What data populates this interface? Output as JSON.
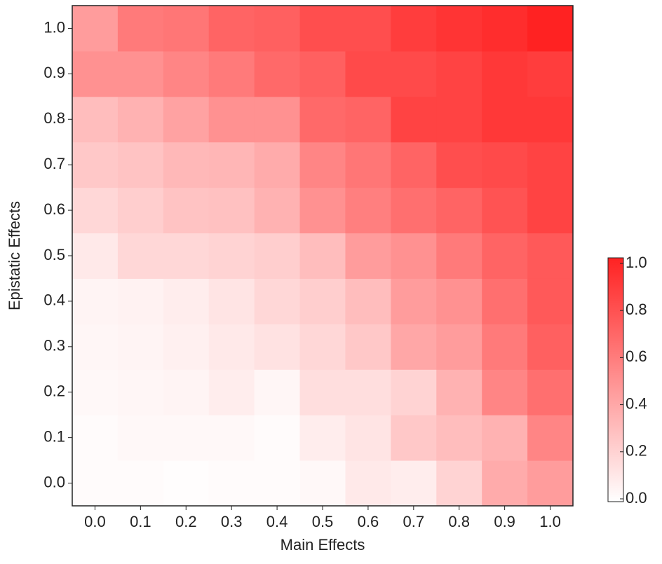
{
  "chart_data": {
    "type": "heatmap",
    "x_label": "Main Effects",
    "y_label": "Epistatic Effects",
    "x_categories": [
      "0.0",
      "0.1",
      "0.2",
      "0.3",
      "0.4",
      "0.5",
      "0.6",
      "0.7",
      "0.8",
      "0.9",
      "1.0"
    ],
    "y_categories": [
      "0.0",
      "0.1",
      "0.2",
      "0.3",
      "0.4",
      "0.5",
      "0.6",
      "0.7",
      "0.8",
      "0.9",
      "1.0"
    ],
    "values": [
      [
        0.02,
        0.02,
        0.01,
        0.02,
        0.02,
        0.03,
        0.1,
        0.08,
        0.2,
        0.38,
        0.45
      ],
      [
        0.02,
        0.03,
        0.03,
        0.03,
        0.02,
        0.08,
        0.12,
        0.25,
        0.3,
        0.35,
        0.55
      ],
      [
        0.03,
        0.04,
        0.05,
        0.08,
        0.04,
        0.15,
        0.15,
        0.2,
        0.35,
        0.55,
        0.65
      ],
      [
        0.04,
        0.05,
        0.07,
        0.1,
        0.13,
        0.18,
        0.25,
        0.4,
        0.45,
        0.6,
        0.72
      ],
      [
        0.05,
        0.06,
        0.08,
        0.12,
        0.18,
        0.22,
        0.3,
        0.45,
        0.5,
        0.65,
        0.75
      ],
      [
        0.1,
        0.18,
        0.18,
        0.2,
        0.22,
        0.3,
        0.45,
        0.5,
        0.6,
        0.7,
        0.75
      ],
      [
        0.18,
        0.22,
        0.27,
        0.28,
        0.35,
        0.5,
        0.58,
        0.65,
        0.7,
        0.78,
        0.85
      ],
      [
        0.25,
        0.27,
        0.32,
        0.33,
        0.38,
        0.55,
        0.62,
        0.7,
        0.8,
        0.82,
        0.85
      ],
      [
        0.3,
        0.35,
        0.42,
        0.5,
        0.5,
        0.68,
        0.7,
        0.85,
        0.85,
        0.9,
        0.9
      ],
      [
        0.5,
        0.5,
        0.55,
        0.6,
        0.68,
        0.72,
        0.82,
        0.82,
        0.85,
        0.9,
        0.88
      ],
      [
        0.45,
        0.6,
        0.62,
        0.7,
        0.72,
        0.8,
        0.8,
        0.88,
        0.92,
        0.95,
        1.0
      ]
    ],
    "color_low": "#ffffff",
    "color_high": "#ff2222",
    "colorbar_lim": [
      0,
      1
    ],
    "colorbar_ticks": [
      {
        "value": 0,
        "label": "0.0"
      },
      {
        "value": 0.2,
        "label": "0.2"
      },
      {
        "value": 0.4,
        "label": "0.4"
      },
      {
        "value": 0.6,
        "label": "0.6"
      },
      {
        "value": 0.8,
        "label": "0.8"
      },
      {
        "value": 1,
        "label": "1.0"
      }
    ]
  }
}
